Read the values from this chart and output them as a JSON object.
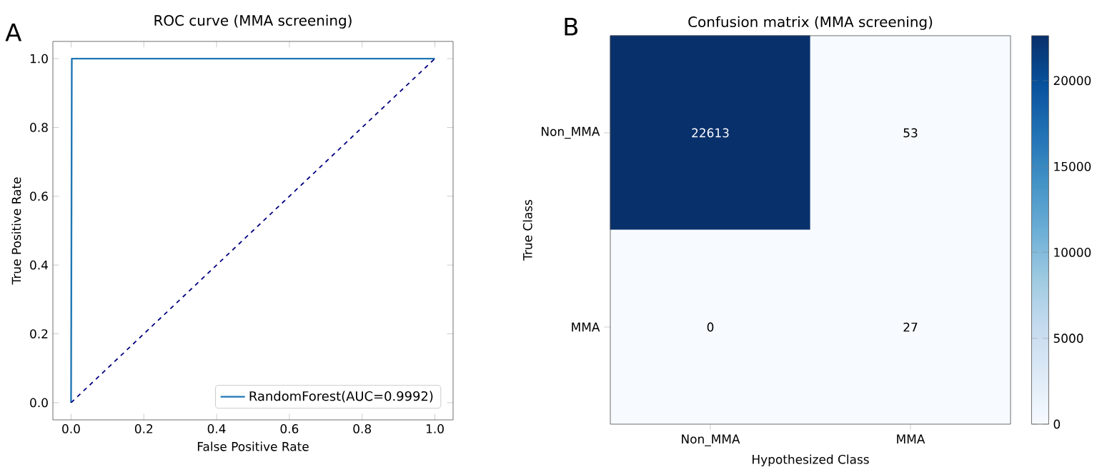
{
  "chart_data": [
    {
      "type": "line",
      "title": "ROC curve (MMA screening)",
      "xlabel": "False Positive Rate",
      "ylabel": "True Positive Rate",
      "annotations": [
        "A"
      ],
      "series": [
        {
          "name": "RandomForest(AUC=0.9992)",
          "color": "#1f77b4",
          "x": [
            0,
            0.002,
            1
          ],
          "values": [
            0,
            1,
            1
          ]
        },
        {
          "color": "#000080",
          "line_style": "dashed",
          "x": [
            0,
            1
          ],
          "values": [
            0,
            1
          ]
        }
      ],
      "xlim": [
        -0.05,
        1.05
      ],
      "ylim": [
        -0.05,
        1.05
      ],
      "xticks": [
        {
          "value": 0,
          "label": "0.0"
        },
        0.2,
        0.4,
        0.6,
        0.8,
        {
          "value": 1,
          "label": "1.0"
        }
      ],
      "yticks": [
        {
          "value": 0,
          "label": "0.0"
        },
        0.2,
        0.4,
        0.6,
        0.8,
        {
          "value": 1,
          "label": "1.0"
        }
      ],
      "legend": "bottom right"
    },
    {
      "type": "heatmap",
      "title": "Confusion matrix (MMA screening)",
      "xlabel": "Hypothesized Class",
      "ylabel": "True Class",
      "annotations": [
        "B"
      ],
      "categories": [
        "Non_MMA",
        "MMA"
      ],
      "y_categories": [
        "Non_MMA",
        "MMA"
      ],
      "cells": [
        [
          22613,
          53
        ],
        [
          0,
          27
        ]
      ],
      "data_labels": true,
      "clim": [
        0,
        22613
      ],
      "cticks": [
        0,
        5000,
        10000,
        15000,
        20000
      ]
    }
  ]
}
